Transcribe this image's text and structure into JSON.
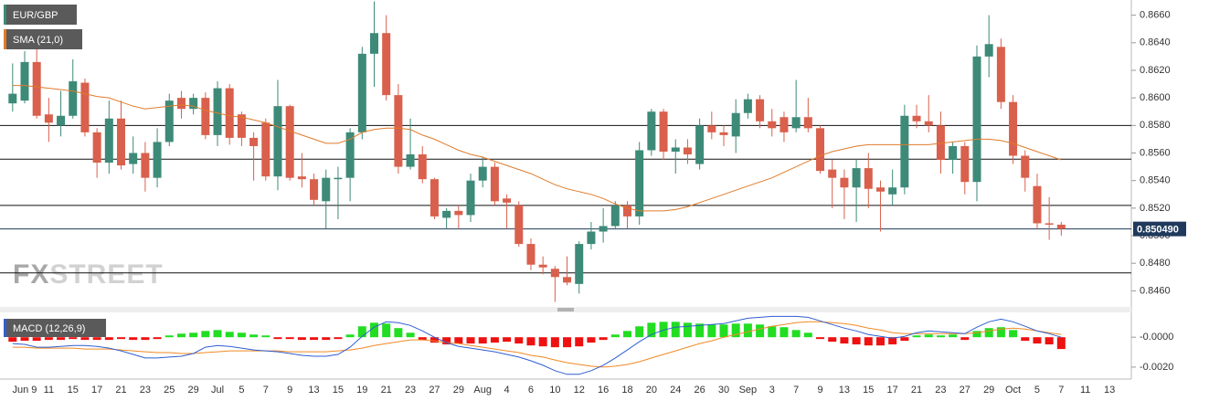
{
  "chart_data": [
    {
      "type": "candlestick",
      "title": "EUR/GBP",
      "categories": [
        null,
        "Jun 9",
        null,
        "11",
        null,
        "15",
        null,
        "17",
        null,
        "21",
        null,
        "23",
        null,
        "25",
        null,
        "29",
        null,
        "Jul",
        null,
        "5",
        null,
        "7",
        null,
        "9",
        null,
        "13",
        null,
        "15",
        null,
        "19",
        null,
        "21",
        null,
        "23",
        null,
        "27",
        null,
        "29",
        null,
        "Aug",
        null,
        "4",
        null,
        "6",
        null,
        "10",
        null,
        "12",
        null,
        "16",
        null,
        "18",
        null,
        "20",
        null,
        "24",
        null,
        "26",
        null,
        "30",
        null,
        "Sep",
        null,
        "3",
        null,
        "7",
        null,
        "9",
        null,
        "13",
        null,
        "15",
        null,
        "17",
        null,
        "21",
        null,
        "23",
        null,
        "27",
        null,
        "29",
        null,
        "Oct",
        null,
        "5",
        null,
        "7",
        null,
        "11",
        null,
        "13"
      ],
      "open": [
        0.8596,
        0.8598,
        0.8626,
        0.8588,
        0.858,
        0.8587,
        0.8611,
        0.8575,
        0.8553,
        0.8585,
        0.8552,
        0.856,
        0.8542,
        0.8568,
        0.86,
        0.8592,
        0.86,
        0.8573,
        0.8607,
        0.8588,
        0.8571,
        0.8582,
        0.8543,
        0.8594,
        0.8543,
        0.8541,
        0.8525,
        0.8541,
        0.8542,
        0.8575,
        0.8632,
        0.8647,
        0.8602,
        0.855,
        0.8559,
        0.8541,
        0.8513,
        0.8518,
        0.8515,
        0.854,
        0.855,
        0.8527,
        0.8522,
        0.8494,
        0.8479,
        0.8476,
        0.847,
        0.8465,
        0.8494,
        0.8503,
        0.8507,
        0.8522,
        0.8514,
        0.8562,
        0.859,
        0.8561,
        0.8564,
        0.8552,
        0.858,
        0.8575,
        0.8572,
        0.8589,
        0.8599,
        0.8583,
        0.8586,
        0.8578,
        0.8586,
        0.8578,
        0.8548,
        0.8542,
        0.8535,
        0.8549,
        0.8535,
        0.853,
        0.8535,
        0.8587,
        0.8583,
        0.858,
        0.8555,
        0.8565,
        0.8539,
        0.863,
        0.8637,
        0.8597,
        0.8558,
        0.8536,
        0.8509,
        0.8508,
        null,
        null,
        null,
        null
      ],
      "high": [
        0.8625,
        0.8634,
        0.864,
        0.86,
        0.8605,
        0.8628,
        0.8614,
        0.8578,
        0.8598,
        0.8598,
        0.8572,
        0.8568,
        0.8578,
        0.8603,
        0.8605,
        0.8603,
        0.8604,
        0.8612,
        0.861,
        0.859,
        0.8575,
        0.8585,
        0.8613,
        0.8595,
        0.856,
        0.8545,
        0.8548,
        0.855,
        0.8578,
        0.8637,
        0.867,
        0.866,
        0.861,
        0.8585,
        0.8565,
        0.8542,
        0.852,
        0.8522,
        0.8545,
        0.8557,
        0.8553,
        0.853,
        0.8525,
        0.8498,
        0.8485,
        0.8478,
        0.8485,
        0.8496,
        0.851,
        0.852,
        0.8525,
        0.8525,
        0.8568,
        0.8592,
        0.8592,
        0.857,
        0.857,
        0.8585,
        0.859,
        0.858,
        0.8599,
        0.8603,
        0.8602,
        0.8592,
        0.859,
        0.8613,
        0.86,
        0.858,
        0.8555,
        0.8548,
        0.8555,
        0.856,
        0.854,
        0.8548,
        0.8595,
        0.8595,
        0.8602,
        0.859,
        0.8568,
        0.8568,
        0.8638,
        0.866,
        0.8643,
        0.8602,
        0.8562,
        0.8545,
        0.8528,
        0.851,
        null,
        null,
        null,
        null
      ],
      "low": [
        0.859,
        0.8596,
        0.8585,
        0.8568,
        0.8572,
        0.8585,
        0.8572,
        0.8542,
        0.8545,
        0.8548,
        0.8545,
        0.8532,
        0.8535,
        0.8565,
        0.8585,
        0.8588,
        0.857,
        0.8565,
        0.8566,
        0.8565,
        0.854,
        0.854,
        0.8533,
        0.854,
        0.8535,
        0.8522,
        0.8505,
        0.8512,
        0.8525,
        0.857,
        0.8608,
        0.8598,
        0.8545,
        0.8548,
        0.8538,
        0.8512,
        0.8505,
        0.8505,
        0.851,
        0.8535,
        0.8522,
        0.8505,
        0.8492,
        0.8475,
        0.8472,
        0.8452,
        0.8464,
        0.8458,
        0.849,
        0.8495,
        0.8505,
        0.8505,
        0.8508,
        0.8558,
        0.8555,
        0.8545,
        0.8552,
        0.8548,
        0.857,
        0.8565,
        0.856,
        0.8585,
        0.8578,
        0.8572,
        0.8568,
        0.8575,
        0.8575,
        0.8545,
        0.852,
        0.8512,
        0.851,
        0.852,
        0.8503,
        0.8522,
        0.853,
        0.8578,
        0.8575,
        0.8545,
        0.8545,
        0.853,
        0.8525,
        0.8615,
        0.8592,
        0.8552,
        0.8532,
        0.8505,
        0.8497,
        0.85,
        null,
        null,
        null,
        null
      ],
      "close": [
        0.8603,
        0.8626,
        0.8587,
        0.8582,
        0.8587,
        0.8612,
        0.8575,
        0.8553,
        0.8585,
        0.8551,
        0.856,
        0.8542,
        0.8568,
        0.8598,
        0.8592,
        0.86,
        0.8573,
        0.8607,
        0.8571,
        0.8571,
        0.8565,
        0.8543,
        0.8594,
        0.8542,
        0.8541,
        0.8526,
        0.8542,
        0.8542,
        0.8575,
        0.8632,
        0.8647,
        0.8602,
        0.855,
        0.8559,
        0.8541,
        0.8514,
        0.8518,
        0.8515,
        0.854,
        0.855,
        0.8525,
        0.8524,
        0.8494,
        0.8479,
        0.8477,
        0.847,
        0.8466,
        0.8494,
        0.8503,
        0.8507,
        0.8522,
        0.8514,
        0.8562,
        0.859,
        0.8561,
        0.8564,
        0.8559,
        0.858,
        0.8575,
        0.8573,
        0.8589,
        0.8599,
        0.8583,
        0.8578,
        0.8575,
        0.8586,
        0.8578,
        0.8547,
        0.8542,
        0.8535,
        0.8549,
        0.8534,
        0.8532,
        0.8535,
        0.8587,
        0.8583,
        0.858,
        0.8555,
        0.8565,
        0.8539,
        0.863,
        0.8639,
        0.8597,
        0.8558,
        0.8542,
        0.8509,
        0.8508,
        0.85049,
        null,
        null,
        null,
        null
      ],
      "up_color": "#3d8a78",
      "down_color": "#d9604c",
      "sma": {
        "name": "SMA (21,0)",
        "color": "#e07b2a",
        "values": [
          0.8609,
          0.8609,
          0.8608,
          0.8607,
          0.8606,
          0.8605,
          0.8603,
          0.8601,
          0.86,
          0.8597,
          0.8594,
          0.8592,
          0.8593,
          0.8594,
          0.8595,
          0.8594,
          0.8591,
          0.8589,
          0.8587,
          0.8586,
          0.8584,
          0.8582,
          0.8579,
          0.8576,
          0.8573,
          0.857,
          0.8567,
          0.8567,
          0.857,
          0.8575,
          0.8577,
          0.8578,
          0.8578,
          0.8577,
          0.8573,
          0.857,
          0.8566,
          0.8562,
          0.8559,
          0.8557,
          0.8554,
          0.8551,
          0.8548,
          0.8545,
          0.8541,
          0.8537,
          0.8534,
          0.8532,
          0.853,
          0.8527,
          0.8523,
          0.852,
          0.8518,
          0.8518,
          0.8518,
          0.8519,
          0.8521,
          0.8524,
          0.8527,
          0.853,
          0.8533,
          0.8536,
          0.8539,
          0.8542,
          0.8546,
          0.855,
          0.8554,
          0.8558,
          0.8561,
          0.8563,
          0.8565,
          0.8566,
          0.8566,
          0.8566,
          0.8566,
          0.8566,
          0.8566,
          0.8567,
          0.8568,
          0.8569,
          0.857,
          0.857,
          0.8569,
          0.8567,
          0.8564,
          0.8561,
          0.8558,
          0.8555,
          null,
          null,
          null,
          null
        ]
      },
      "hlines": [
        0.858,
        0.85555,
        0.8522,
        0.8473
      ],
      "hline_color": "#111111",
      "last_price": {
        "value": 0.85049,
        "label": "0.850490"
      },
      "last_price_color": "#1f3a5c",
      "watermark": [
        "FX",
        "STREET"
      ],
      "ylim": [
        0.8449,
        0.8671
      ],
      "yticks": [
        {
          "value": 0.846,
          "label": "0.8460"
        },
        {
          "value": 0.848,
          "label": "0.8480"
        },
        {
          "value": 0.85,
          "label": "0.8500"
        },
        {
          "value": 0.852,
          "label": "0.8520"
        },
        {
          "value": 0.854,
          "label": "0.8540"
        },
        {
          "value": 0.856,
          "label": "0.8560"
        },
        {
          "value": 0.858,
          "label": "0.8580"
        },
        {
          "value": 0.86,
          "label": "0.8600"
        },
        {
          "value": 0.862,
          "label": "0.8620"
        },
        {
          "value": 0.864,
          "label": "0.8640"
        },
        {
          "value": 0.866,
          "label": "0.8660"
        }
      ]
    },
    {
      "type": "macd",
      "title": "MACD (12,26,9)",
      "ylim": [
        -0.0028,
        0.0016
      ],
      "yticks": [
        {
          "value": 0,
          "label": "-0.0000"
        },
        {
          "value": -0.002,
          "label": "-0.0020"
        }
      ],
      "macd": {
        "color": "#2f5fd0",
        "values": [
          -0.00042,
          -0.00048,
          -0.00067,
          -0.00067,
          -0.00061,
          -0.00055,
          -0.00055,
          -0.00061,
          -0.00073,
          -0.00091,
          -0.00115,
          -0.00139,
          -0.00139,
          -0.00133,
          -0.00127,
          -0.00109,
          -0.00067,
          -0.00055,
          -0.00061,
          -0.00073,
          -0.00085,
          -0.00091,
          -0.00097,
          -0.00109,
          -0.00121,
          -0.00127,
          -0.00127,
          -0.00115,
          -0.00067,
          6e-05,
          0.00067,
          0.00103,
          0.00097,
          0.00079,
          0.00042,
          0,
          -0.00036,
          -0.00061,
          -0.00073,
          -0.00085,
          -0.00097,
          -0.00115,
          -0.00133,
          -0.00158,
          -0.00188,
          -0.00224,
          -0.00248,
          -0.00248,
          -0.00224,
          -0.00188,
          -0.00139,
          -0.00085,
          -0.0003,
          0.00018,
          0.00048,
          0.00067,
          0.00073,
          0.00079,
          0.00085,
          0.00091,
          0.00109,
          0.00127,
          0.00133,
          0.00139,
          0.00139,
          0.00139,
          0.00133,
          0.00109,
          0.00085,
          0.00061,
          0.00042,
          0.00018,
          6e-05,
          -6e-05,
          6e-05,
          0.0003,
          0.00042,
          0.00036,
          0.0003,
          0.00024,
          0.00067,
          0.00103,
          0.00121,
          0.00103,
          0.00073,
          0.00042,
          0.00024,
          0,
          null,
          null,
          null,
          null
        ]
      },
      "signal": {
        "color": "#f08a24",
        "values": [
          -0.00067,
          -0.00067,
          -0.00073,
          -0.00073,
          -0.00073,
          -0.00073,
          -0.00079,
          -0.00079,
          -0.00079,
          -0.00085,
          -0.00091,
          -0.00097,
          -0.00103,
          -0.00103,
          -0.00109,
          -0.00109,
          -0.00103,
          -0.00097,
          -0.00091,
          -0.00091,
          -0.00091,
          -0.00091,
          -0.00091,
          -0.00097,
          -0.00097,
          -0.00097,
          -0.00097,
          -0.00091,
          -0.00085,
          -0.00073,
          -0.00055,
          -0.00042,
          -0.0003,
          -0.00018,
          -0.00018,
          -0.00024,
          -0.00036,
          -0.00042,
          -0.00055,
          -0.00067,
          -0.00079,
          -0.00091,
          -0.00103,
          -0.00121,
          -0.00133,
          -0.00152,
          -0.0017,
          -0.00182,
          -0.00194,
          -0.002,
          -0.00194,
          -0.00182,
          -0.00164,
          -0.00139,
          -0.00115,
          -0.00091,
          -0.00067,
          -0.00042,
          -0.00024,
          0,
          0.00018,
          0.00036,
          0.00055,
          0.00073,
          0.00085,
          0.00097,
          0.00103,
          0.00103,
          0.00097,
          0.00091,
          0.00079,
          0.00061,
          0.00048,
          0.0003,
          0.00024,
          0.00024,
          0.00024,
          0.00024,
          0.00024,
          0.00024,
          0.0003,
          0.00042,
          0.00055,
          0.00061,
          0.00055,
          0.00042,
          0.0003,
          0.00018,
          null,
          null,
          null,
          null
        ]
      },
      "histogram": {
        "up_color": "#22dd22",
        "down_color": "#ee1111",
        "values": [
          -0.0003,
          -0.00024,
          -0.00024,
          -0.00018,
          -0.00018,
          -0.00012,
          -0.00018,
          -0.00018,
          -0.00018,
          -0.00012,
          -0.00018,
          -0.00018,
          -0.00012,
          0.00012,
          0.00024,
          0.0003,
          0.00042,
          0.00048,
          0.00036,
          0.0003,
          0.00018,
          0.00012,
          -0.00012,
          -0.00012,
          -0.00018,
          -0.00018,
          -0.00018,
          -0.00012,
          0.00018,
          0.00073,
          0.00097,
          0.00091,
          0.00061,
          0.0003,
          -0.00018,
          -0.00036,
          -0.00048,
          -0.00042,
          -0.00042,
          -0.00042,
          -0.00036,
          -0.0003,
          -0.00042,
          -0.00055,
          -0.00061,
          -0.00067,
          -0.00067,
          -0.00061,
          -0.00036,
          -0.00018,
          0.00018,
          0.00042,
          0.00073,
          0.00097,
          0.00103,
          0.00103,
          0.00097,
          0.00091,
          0.00085,
          0.00085,
          0.00091,
          0.00091,
          0.00085,
          0.00073,
          0.00067,
          0.00048,
          0.0003,
          -0.00012,
          -0.0003,
          -0.00042,
          -0.00048,
          -0.00055,
          -0.00055,
          -0.00048,
          -0.00024,
          0.00012,
          0.00018,
          0.00012,
          0.00018,
          -0.00018,
          0.00042,
          0.00061,
          0.00067,
          0.00048,
          -0.00024,
          -0.00042,
          -0.00048,
          -0.00079,
          null,
          null,
          null,
          null
        ]
      }
    }
  ]
}
